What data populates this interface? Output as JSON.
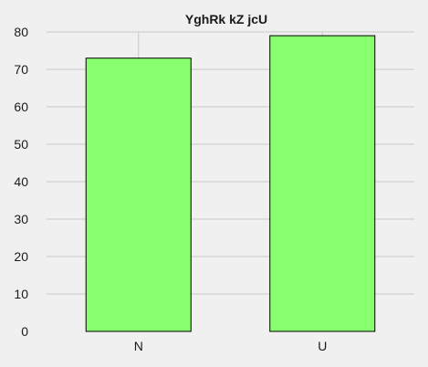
{
  "chart_data": {
    "type": "bar",
    "title": "YghRk kZ  jcU",
    "xlabel": "",
    "ylabel": "",
    "categories": [
      "N",
      "U"
    ],
    "values": [
      73,
      79
    ],
    "ylim": [
      0,
      80
    ],
    "yticks": [
      0,
      10,
      20,
      30,
      40,
      50,
      60,
      70,
      80
    ],
    "grid": true,
    "bar_color": "#88ff6e",
    "bar_edge_color": "#000000",
    "background_color": "#f0f0f0"
  }
}
